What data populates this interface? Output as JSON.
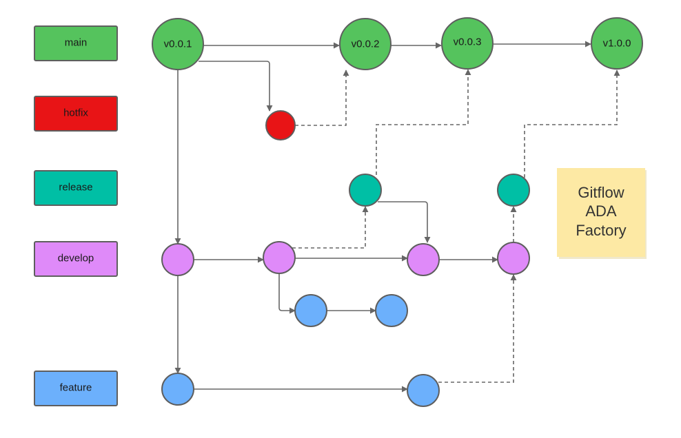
{
  "colors": {
    "main": "#55c35d",
    "hotfix": "#e81416",
    "release": "#00bfa5",
    "develop": "#df8af9",
    "feature": "#6cb0fc",
    "note": "#fde9a4",
    "stroke": "#5e5e5e"
  },
  "branches": [
    {
      "id": "main",
      "label": "main"
    },
    {
      "id": "hotfix",
      "label": "hotfix"
    },
    {
      "id": "release",
      "label": "release"
    },
    {
      "id": "develop",
      "label": "develop"
    },
    {
      "id": "feature",
      "label": "feature"
    }
  ],
  "tags": [
    "v0.0.1",
    "v0.0.2",
    "v0.0.3",
    "v1.0.0"
  ],
  "note": {
    "lines": [
      "Gitflow",
      "ADA",
      "Factory"
    ]
  }
}
